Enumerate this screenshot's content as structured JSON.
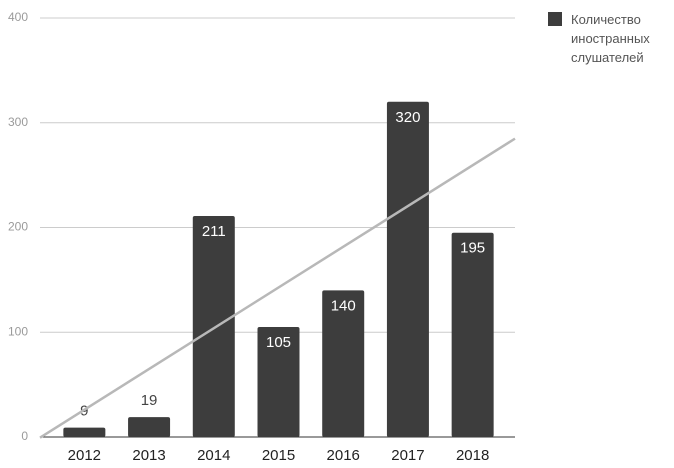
{
  "chart_data": {
    "type": "bar",
    "categories": [
      "2012",
      "2013",
      "2014",
      "2015",
      "2016",
      "2017",
      "2018"
    ],
    "series": [
      {
        "name": "Количество иностранных слушателей",
        "color": "#3d3d3d",
        "values": [
          9,
          19,
          211,
          105,
          140,
          320,
          195
        ]
      }
    ],
    "ylim": [
      0,
      400
    ],
    "yticks": [
      0,
      100,
      200,
      300,
      400
    ],
    "grid": true,
    "trendline": true,
    "trendline_color": "#b8b8b8",
    "legend": "right"
  }
}
